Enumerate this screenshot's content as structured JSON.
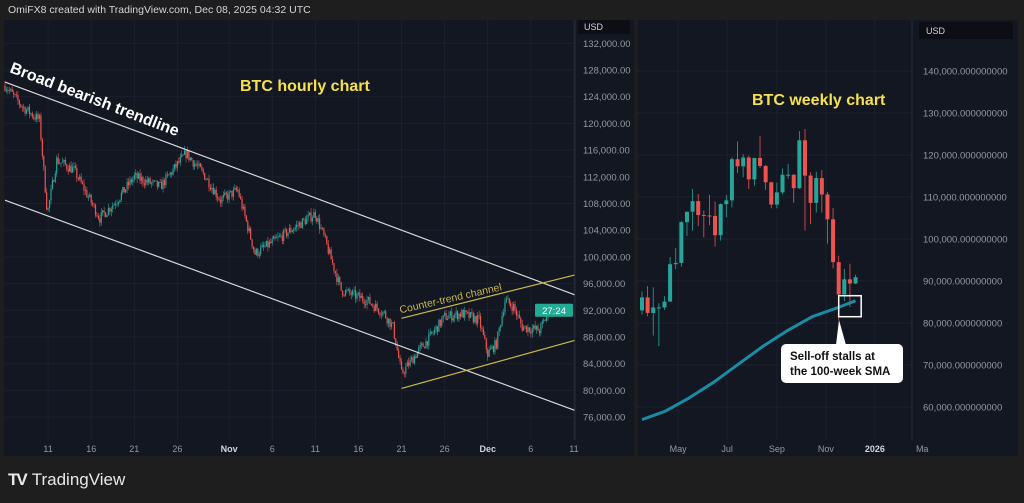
{
  "header": {
    "credit": "OmiFX8 created with TradingView.com, Dec 08, 2025 04:32 UTC"
  },
  "footer": {
    "brand": "TradingView",
    "logo_icon": "tradingview-logo"
  },
  "colors": {
    "up": "#26a69a",
    "down": "#ef5350",
    "sma": "#1b8ba3",
    "annotation_yellow": "#f5e050",
    "trendline": "#d8d8d8",
    "channel": "#c9b84a",
    "badge": "#22ab94"
  },
  "chart_data": [
    {
      "type": "candlestick",
      "title": "BTC hourly chart",
      "currency": "USD",
      "countdown_badge": "27:24",
      "y_ticks": [
        "132,000.00",
        "128,000.00",
        "124,000.00",
        "120,000.00",
        "116,000.00",
        "112,000.00",
        "108,000.00",
        "104,000.00",
        "100,000.00",
        "96,000.00",
        "92,000.00",
        "88,000.00",
        "84,000.00",
        "80,000.00",
        "76,000.00"
      ],
      "ylim": [
        74000,
        133000
      ],
      "x_ticks": [
        {
          "label": "11",
          "date": "2025-10-11"
        },
        {
          "label": "16",
          "date": "2025-10-16"
        },
        {
          "label": "21",
          "date": "2025-10-21"
        },
        {
          "label": "26",
          "date": "2025-10-26"
        },
        {
          "label": "Nov",
          "date": "2025-11-01"
        },
        {
          "label": "6",
          "date": "2025-11-06"
        },
        {
          "label": "11",
          "date": "2025-11-11"
        },
        {
          "label": "16",
          "date": "2025-11-16"
        },
        {
          "label": "21",
          "date": "2025-11-21"
        },
        {
          "label": "26",
          "date": "2025-11-26"
        },
        {
          "label": "Dec",
          "date": "2025-12-01"
        },
        {
          "label": "6",
          "date": "2025-12-06"
        },
        {
          "label": "11",
          "date": "2025-12-11"
        }
      ],
      "xlim": [
        "2025-10-06",
        "2025-12-13"
      ],
      "price_path": [
        [
          "2025-10-06",
          125700
        ],
        [
          "2025-10-08",
          122500
        ],
        [
          "2025-10-10",
          120500
        ],
        [
          "2025-10-10T22",
          106500
        ],
        [
          "2025-10-12",
          114500
        ],
        [
          "2025-10-14",
          113000
        ],
        [
          "2025-10-17",
          105800
        ],
        [
          "2025-10-19",
          108500
        ],
        [
          "2025-10-21",
          112000
        ],
        [
          "2025-10-24",
          110500
        ],
        [
          "2025-10-27",
          115500
        ],
        [
          "2025-10-29",
          112500
        ],
        [
          "2025-10-31",
          108500
        ],
        [
          "2025-11-02",
          110000
        ],
        [
          "2025-11-04",
          100500
        ],
        [
          "2025-11-07",
          103000
        ],
        [
          "2025-11-11",
          106500
        ],
        [
          "2025-11-12",
          103000
        ],
        [
          "2025-11-14",
          95000
        ],
        [
          "2025-11-17",
          93500
        ],
        [
          "2025-11-19",
          91500
        ],
        [
          "2025-11-20",
          89500
        ],
        [
          "2025-11-21",
          82500
        ],
        [
          "2025-11-23",
          86000
        ],
        [
          "2025-11-24",
          87500
        ],
        [
          "2025-11-26",
          91000
        ],
        [
          "2025-11-28",
          91500
        ],
        [
          "2025-11-30",
          90500
        ],
        [
          "2025-12-01",
          85500
        ],
        [
          "2025-12-02",
          87000
        ],
        [
          "2025-12-03",
          93500
        ],
        [
          "2025-12-04",
          92500
        ],
        [
          "2025-12-05",
          89500
        ],
        [
          "2025-12-07",
          89000
        ],
        [
          "2025-12-08",
          91500
        ]
      ],
      "annotations": [
        {
          "text": "Broad bearish trendline",
          "type": "trendline",
          "from": [
            "2025-10-06",
            126200
          ],
          "to": [
            "2025-12-13",
            94300
          ]
        },
        {
          "text": "",
          "type": "trendline",
          "from": [
            "2025-10-06",
            108500
          ],
          "to": [
            "2025-12-13",
            77000
          ]
        },
        {
          "text": "Counter-trend channel",
          "type": "channel_upper",
          "from": [
            "2025-11-21",
            90800
          ],
          "to": [
            "2025-12-13",
            97300
          ]
        },
        {
          "text": "",
          "type": "channel_lower",
          "from": [
            "2025-11-21",
            80300
          ],
          "to": [
            "2025-12-13",
            87500
          ]
        }
      ]
    },
    {
      "type": "candlestick",
      "title": "BTC weekly chart",
      "currency": "USD",
      "y_ticks": [
        "140,000.000000000",
        "130,000.000000000",
        "120,000.000000000",
        "110,000.000000000",
        "100,000.000000000",
        "90,000.000000000",
        "80,000.000000000",
        "70,000.000000000",
        "60,000.000000000"
      ],
      "ylim": [
        53000,
        150000
      ],
      "x_ticks": [
        {
          "label": "May",
          "date": "2025-05-01"
        },
        {
          "label": "Jul",
          "date": "2025-07-01"
        },
        {
          "label": "Sep",
          "date": "2025-09-01"
        },
        {
          "label": "Nov",
          "date": "2025-11-01"
        },
        {
          "label": "2026",
          "date": "2026-01-01"
        },
        {
          "label": "Ma",
          "date": "2026-03-01"
        }
      ],
      "xlim": [
        "2025-03-10",
        "2026-03-08"
      ],
      "candles": [
        [
          "2025-03-17",
          83000,
          87500,
          82000,
          86100
        ],
        [
          "2025-03-24",
          86100,
          88800,
          81600,
          82400
        ],
        [
          "2025-03-31",
          82400,
          88500,
          77000,
          83700
        ],
        [
          "2025-04-07",
          83700,
          84700,
          74500,
          83700
        ],
        [
          "2025-04-14",
          83700,
          86400,
          83100,
          85100
        ],
        [
          "2025-04-21",
          85100,
          95700,
          85100,
          94000
        ],
        [
          "2025-04-28",
          94000,
          97900,
          92800,
          94300
        ],
        [
          "2025-05-05",
          94300,
          104300,
          93400,
          104000
        ],
        [
          "2025-05-12",
          104000,
          105800,
          100700,
          106500
        ],
        [
          "2025-05-19",
          106500,
          111900,
          102000,
          109000
        ],
        [
          "2025-05-26",
          109000,
          110700,
          103100,
          105700
        ],
        [
          "2025-06-02",
          105700,
          106800,
          100400,
          105600
        ],
        [
          "2025-06-09",
          105600,
          110500,
          103300,
          105500
        ],
        [
          "2025-06-16",
          105500,
          108900,
          98200,
          100900
        ],
        [
          "2025-06-23",
          100900,
          108500,
          99600,
          108300
        ],
        [
          "2025-06-30",
          108300,
          110500,
          105200,
          109200
        ],
        [
          "2025-07-07",
          109200,
          119400,
          107500,
          119000
        ],
        [
          "2025-07-14",
          119000,
          123200,
          115700,
          117300
        ],
        [
          "2025-07-21",
          117300,
          120200,
          114700,
          119400
        ],
        [
          "2025-07-28",
          119400,
          119800,
          111900,
          114200
        ],
        [
          "2025-08-04",
          114200,
          119300,
          112700,
          119300
        ],
        [
          "2025-08-11",
          119300,
          124500,
          116900,
          117400
        ],
        [
          "2025-08-18",
          117400,
          117600,
          111700,
          113500
        ],
        [
          "2025-08-25",
          113500,
          113600,
          107300,
          108200
        ],
        [
          "2025-09-01",
          108200,
          113400,
          107300,
          111100
        ],
        [
          "2025-09-08",
          111100,
          116800,
          110600,
          115300
        ],
        [
          "2025-09-15",
          115300,
          117900,
          114400,
          115300
        ],
        [
          "2025-09-22",
          115300,
          115400,
          108600,
          112100
        ],
        [
          "2025-09-29",
          112100,
          125700,
          111900,
          123500
        ],
        [
          "2025-10-06",
          123500,
          126200,
          102000,
          115100
        ],
        [
          "2025-10-13",
          115100,
          115900,
          103500,
          108600
        ],
        [
          "2025-10-20",
          108600,
          116000,
          106300,
          114500
        ],
        [
          "2025-10-27",
          114500,
          116400,
          106300,
          110600
        ],
        [
          "2025-11-03",
          110600,
          111200,
          98900,
          104700
        ],
        [
          "2025-11-10",
          104700,
          107400,
          93000,
          94500
        ],
        [
          "2025-11-17",
          94500,
          96000,
          80600,
          86800
        ],
        [
          "2025-11-24",
          86800,
          92900,
          85200,
          90400
        ],
        [
          "2025-12-01",
          90400,
          94100,
          83800,
          89400
        ],
        [
          "2025-12-08",
          89400,
          91500,
          89300,
          90900
        ]
      ],
      "sma_100_week": [
        [
          "2025-03-17",
          57000
        ],
        [
          "2025-04-15",
          59000
        ],
        [
          "2025-05-15",
          62200
        ],
        [
          "2025-06-15",
          66000
        ],
        [
          "2025-07-15",
          70200
        ],
        [
          "2025-08-15",
          74500
        ],
        [
          "2025-09-15",
          78300
        ],
        [
          "2025-10-15",
          81500
        ],
        [
          "2025-11-15",
          83600
        ],
        [
          "2025-12-08",
          85300
        ]
      ],
      "highlight_box": {
        "from": [
          "2025-11-17",
          81500
        ],
        "to": [
          "2025-12-15",
          86500
        ]
      },
      "callout": {
        "line1": "Sell-off stalls at",
        "line2": "the 100-week SMA"
      }
    }
  ]
}
